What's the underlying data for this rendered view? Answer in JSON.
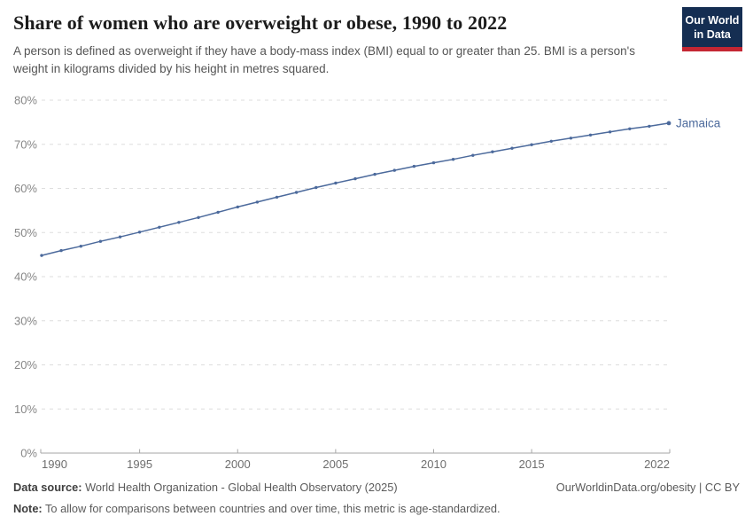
{
  "header": {
    "title": "Share of women who are overweight or obese, 1990 to 2022",
    "subtitle": "A person is defined as overweight if they have a body-mass index (BMI) equal to or greater than 25. BMI is a person's weight in kilograms divided by his height in metres squared."
  },
  "logo": {
    "line1": "Our World",
    "line2": "in Data",
    "bg_color": "#152e52",
    "stripe_color": "#c42633"
  },
  "chart_data": {
    "type": "line",
    "title": "Share of women who are overweight or obese, 1990 to 2022",
    "xlabel": "",
    "ylabel": "",
    "ylim": [
      0,
      80
    ],
    "yticks": [
      0,
      10,
      20,
      30,
      40,
      50,
      60,
      70,
      80
    ],
    "ytick_suffix": "%",
    "xticks": [
      1990,
      1995,
      2000,
      2005,
      2010,
      2015,
      2022
    ],
    "grid": true,
    "legend_position": "end-of-line",
    "colors": {
      "gridline": "#dedede",
      "axis": "#a6a6a6",
      "y_tick_label": "#878787",
      "x_tick_label": "#6d6d6d"
    },
    "series": [
      {
        "name": "Jamaica",
        "color": "#4C6A9C",
        "x": [
          1990,
          1991,
          1992,
          1993,
          1994,
          1995,
          1996,
          1997,
          1998,
          1999,
          2000,
          2001,
          2002,
          2003,
          2004,
          2005,
          2006,
          2007,
          2008,
          2009,
          2010,
          2011,
          2012,
          2013,
          2014,
          2015,
          2016,
          2017,
          2018,
          2019,
          2020,
          2021,
          2022
        ],
        "values": [
          44.8,
          45.9,
          46.9,
          48.0,
          49.0,
          50.1,
          51.2,
          52.3,
          53.4,
          54.6,
          55.8,
          56.9,
          58.0,
          59.1,
          60.2,
          61.2,
          62.2,
          63.2,
          64.1,
          65.0,
          65.8,
          66.6,
          67.5,
          68.3,
          69.1,
          69.9,
          70.7,
          71.4,
          72.1,
          72.8,
          73.5,
          74.1,
          74.8
        ]
      }
    ]
  },
  "footer": {
    "datasource_label": "Data source:",
    "datasource_text": " World Health Organization - Global Health Observatory (2025)",
    "rights": "OurWorldinData.org/obesity | CC BY",
    "note_label": "Note:",
    "note_text": " To allow for comparisons between countries and over time, this metric is age-standardized."
  }
}
